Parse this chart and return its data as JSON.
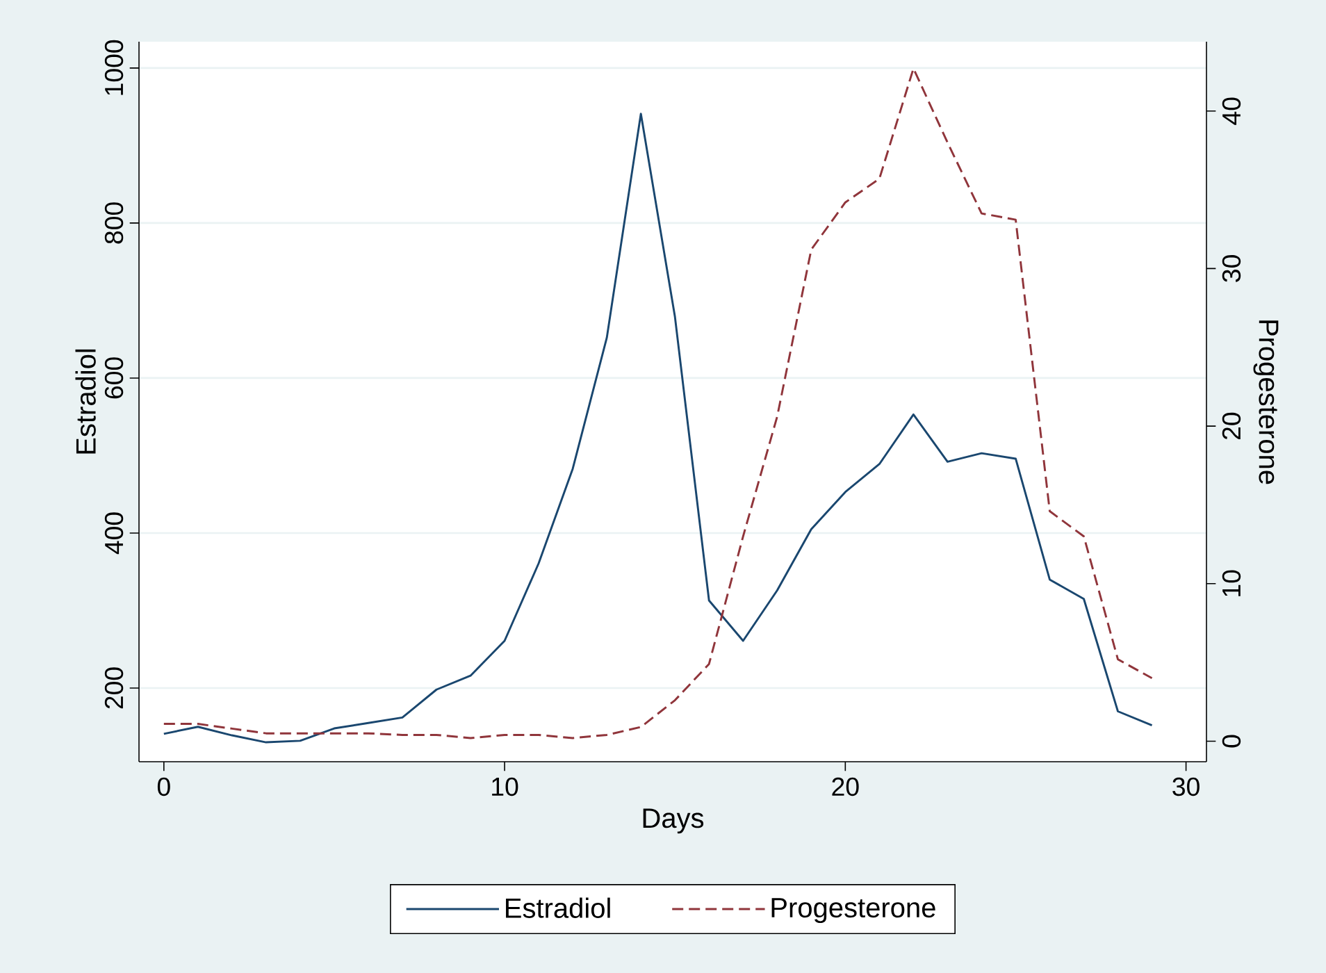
{
  "chart_data": {
    "type": "line",
    "xlabel": "Days",
    "ylabel": "Estradiol",
    "y2label": "Progesterone",
    "x": [
      0,
      1,
      2,
      3,
      4,
      5,
      6,
      7,
      8,
      9,
      10,
      11,
      12,
      13,
      14,
      15,
      16,
      17,
      18,
      19,
      20,
      21,
      22,
      23,
      24,
      25,
      26,
      27,
      28,
      29
    ],
    "series": [
      {
        "name": "Estradiol",
        "color": "#1a476f",
        "line_style": "solid",
        "values": [
          141,
          150,
          139,
          130,
          132,
          148,
          155,
          162,
          198,
          216,
          261,
          361,
          483,
          652,
          941,
          679,
          313,
          261,
          326,
          405,
          453,
          489,
          553,
          492,
          503,
          496,
          340,
          315,
          170,
          152
        ]
      },
      {
        "name": "Progesterone",
        "color": "#90353b",
        "line_style": "dashed",
        "axis": "y2",
        "values": [
          1.1,
          1.1,
          0.8,
          0.5,
          0.5,
          0.5,
          0.5,
          0.4,
          0.4,
          0.2,
          0.4,
          0.4,
          0.2,
          0.4,
          0.9,
          2.6,
          4.9,
          13,
          20.6,
          31.2,
          34.2,
          35.7,
          42.7,
          38,
          33.5,
          33.1,
          14.6,
          13,
          5.2,
          4
        ]
      }
    ],
    "xlim": [
      -0.73,
      30.6
    ],
    "ylim": [
      105,
      1034
    ],
    "y2lim": [
      -1.3,
      44.4
    ],
    "xticks": [
      0,
      10,
      20,
      30
    ],
    "yticks": [
      200,
      400,
      600,
      800,
      1000
    ],
    "y2ticks": [
      0,
      10,
      20,
      30,
      40
    ],
    "grid": "y",
    "legend": "bottom"
  }
}
